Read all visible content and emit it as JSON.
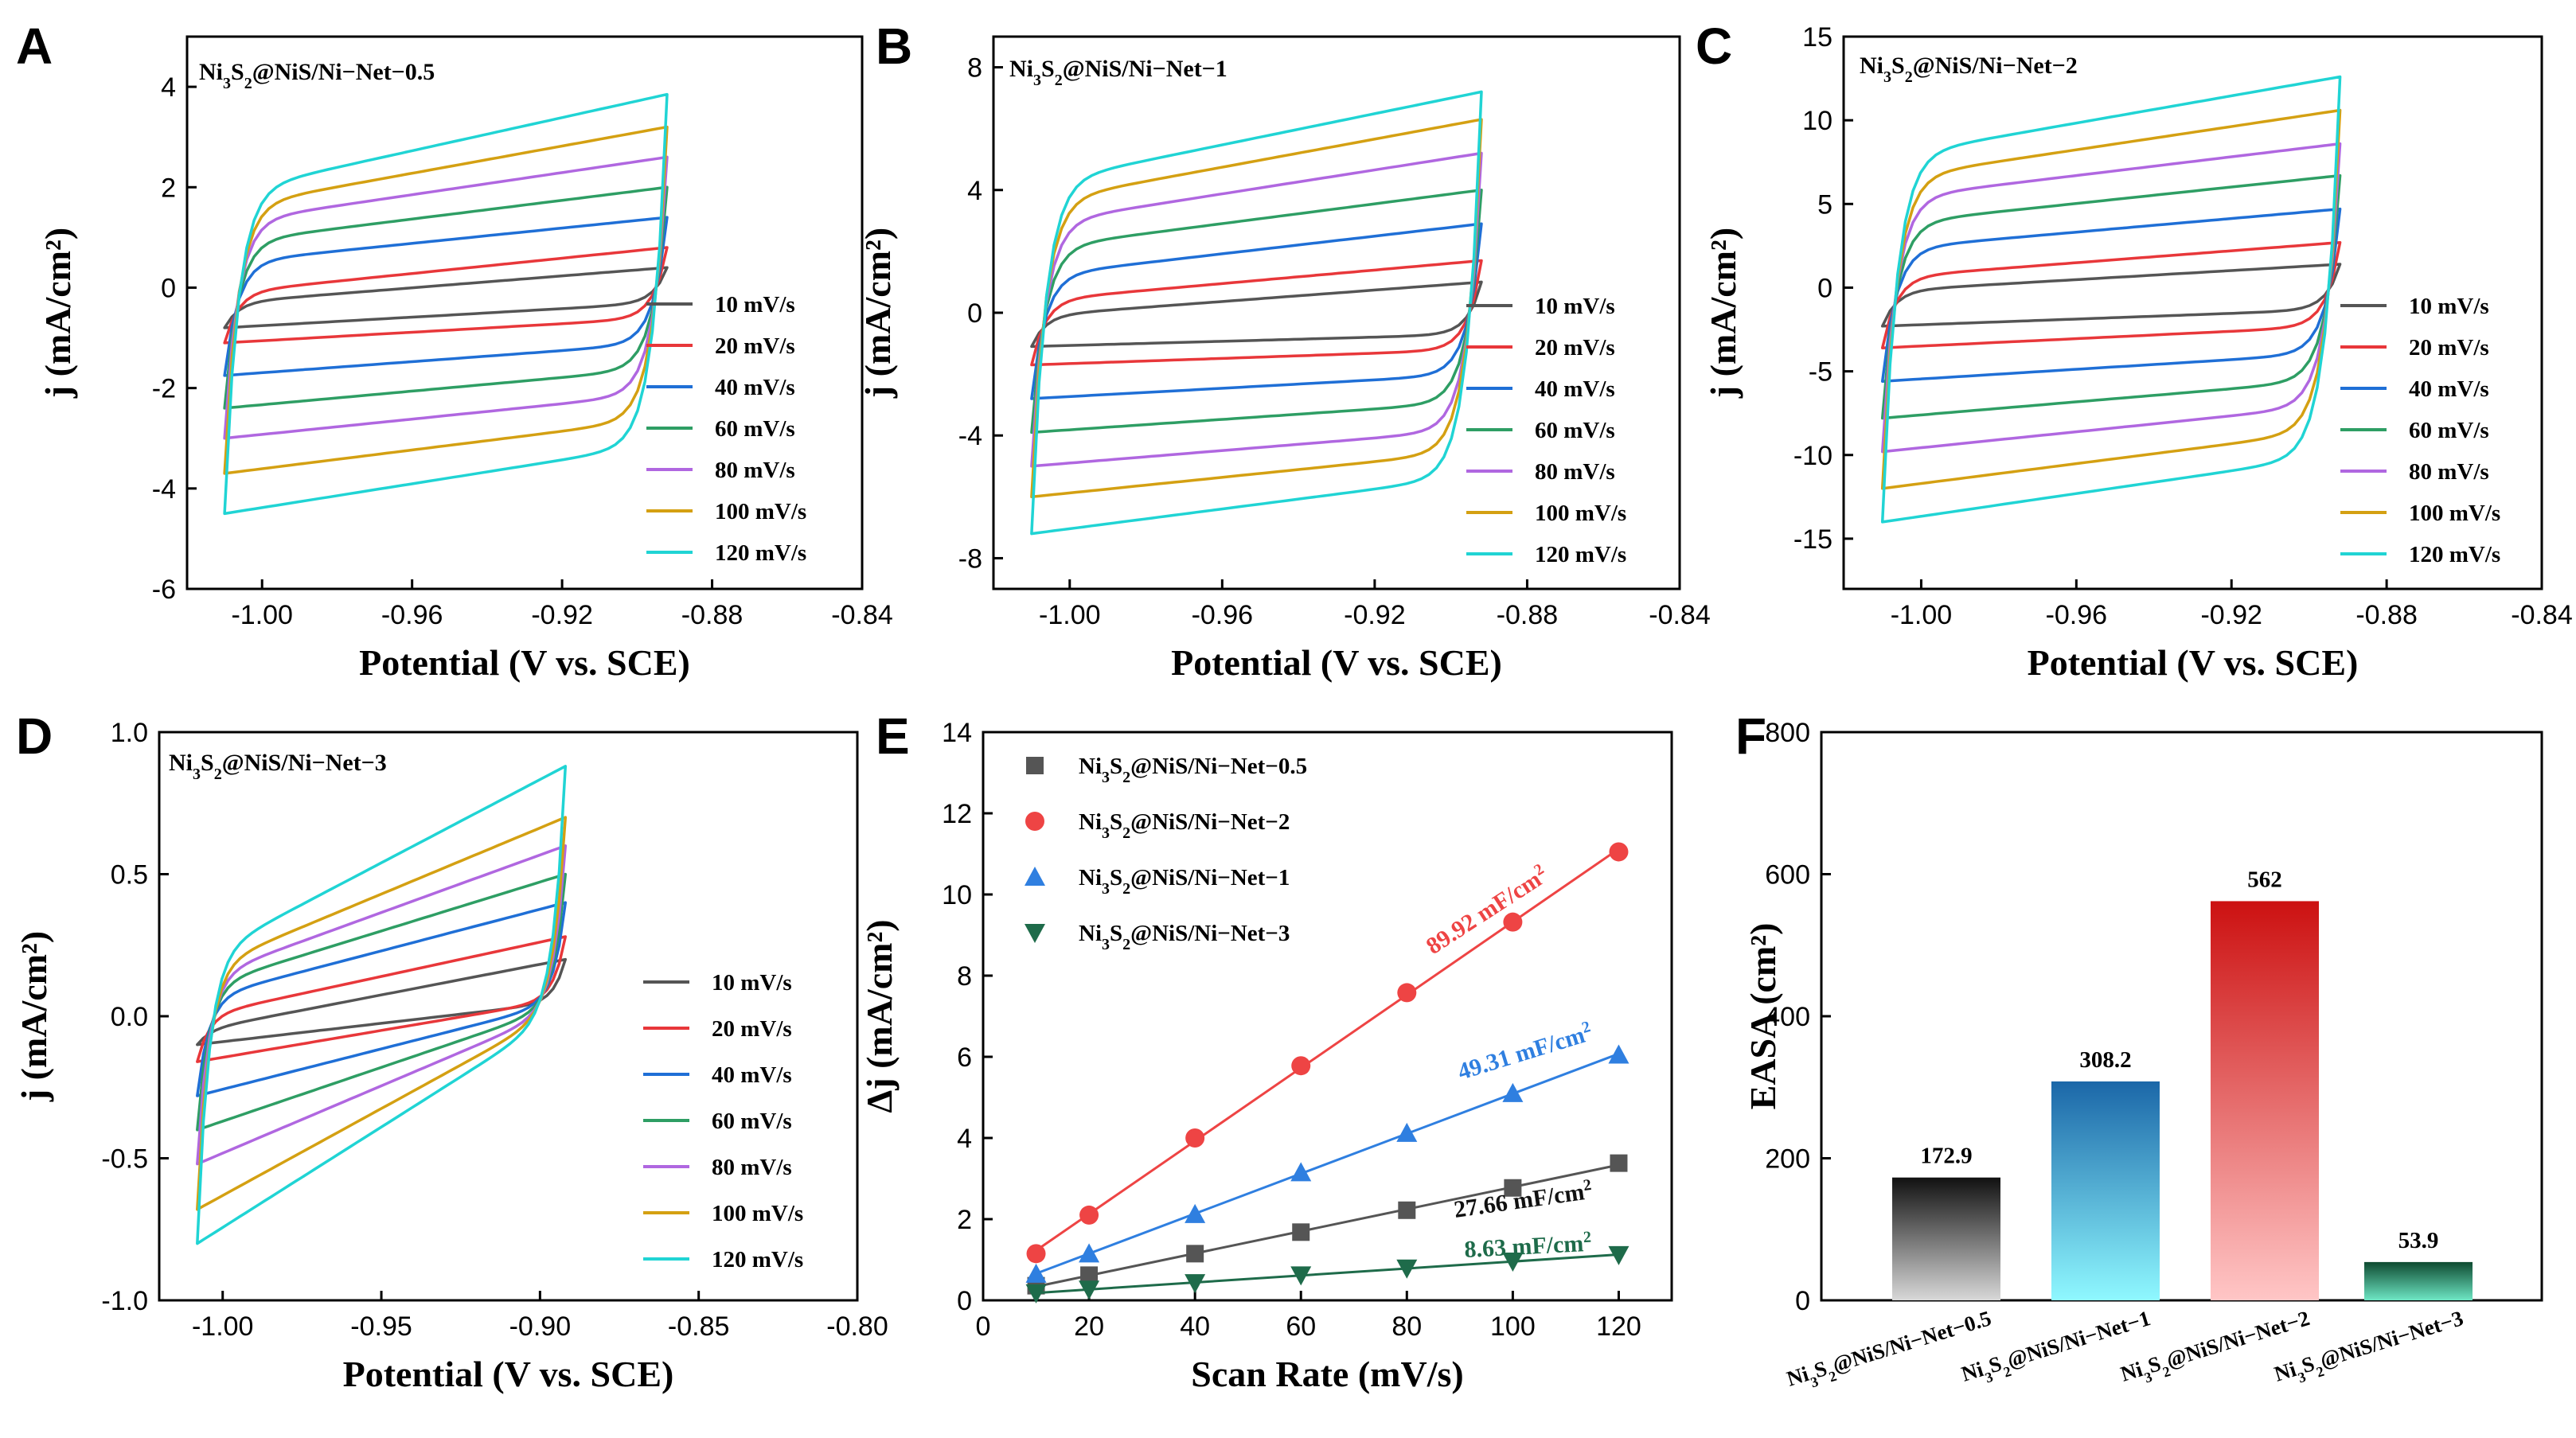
{
  "scan_legend": [
    "10 mV/s",
    "20 mV/s",
    "40 mV/s",
    "60 mV/s",
    "80 mV/s",
    "100 mV/s",
    "120 mV/s"
  ],
  "scan_colors": [
    "#555555",
    "#e8373a",
    "#1f6fd6",
    "#2e9e64",
    "#b067e0",
    "#d4a012",
    "#20d4d4"
  ],
  "chart_data": [
    {
      "panel": "A",
      "type": "line",
      "subtype": "cyclic-voltammetry",
      "label": {
        "base": "Ni",
        "s1": "3",
        "mid": "S",
        "s2": "2",
        "rest": "@NiS/Ni−Net−0.5"
      },
      "xlabel": "Potential (V vs. SCE)",
      "ylabel": "j (mA/cm²)",
      "xlim": [
        -1.02,
        -0.84
      ],
      "ylim": [
        -6,
        5
      ],
      "xticks": [
        -1.0,
        -0.96,
        -0.92,
        -0.88,
        -0.84
      ],
      "xtick_labels": [
        "-1.00",
        "-0.96",
        "-0.92",
        "-0.88",
        "-0.84"
      ],
      "yticks": [
        -6,
        -4,
        -2,
        0,
        2,
        4
      ],
      "ytick_labels": [
        "-6",
        "-4",
        "-2",
        "0",
        "2",
        "4"
      ],
      "v_start": -1.01,
      "v_end": -0.892,
      "series": [
        {
          "name": "10 mV/s",
          "anodic": [
            -0.3,
            0.4
          ],
          "cathodic": [
            -0.8,
            -0.3
          ]
        },
        {
          "name": "20 mV/s",
          "anodic": [
            -0.1,
            0.8
          ],
          "cathodic": [
            -1.1,
            -0.6
          ]
        },
        {
          "name": "40 mV/s",
          "anodic": [
            0.5,
            1.4
          ],
          "cathodic": [
            -1.75,
            -1.1
          ]
        },
        {
          "name": "60 mV/s",
          "anodic": [
            0.9,
            2.0
          ],
          "cathodic": [
            -2.4,
            -1.6
          ]
        },
        {
          "name": "80 mV/s",
          "anodic": [
            1.3,
            2.6
          ],
          "cathodic": [
            -3.0,
            -2.1
          ]
        },
        {
          "name": "100 mV/s",
          "anodic": [
            1.6,
            3.2
          ],
          "cathodic": [
            -3.7,
            -2.6
          ]
        },
        {
          "name": "120 mV/s",
          "anodic": [
            1.9,
            3.85
          ],
          "cathodic": [
            -4.5,
            -3.1
          ]
        }
      ]
    },
    {
      "panel": "B",
      "type": "line",
      "subtype": "cyclic-voltammetry",
      "label": {
        "base": "Ni",
        "s1": "3",
        "mid": "S",
        "s2": "2",
        "rest": "@NiS/Ni−Net−1"
      },
      "xlabel": "Potential (V vs. SCE)",
      "ylabel": "j (mA/cm²)",
      "xlim": [
        -1.02,
        -0.84
      ],
      "ylim": [
        -9,
        9
      ],
      "xticks": [
        -1.0,
        -0.96,
        -0.92,
        -0.88,
        -0.84
      ],
      "xtick_labels": [
        "-1.00",
        "-0.96",
        "-0.92",
        "-0.88",
        "-0.84"
      ],
      "yticks": [
        -8,
        -4,
        0,
        4,
        8
      ],
      "ytick_labels": [
        "-8",
        "-4",
        "0",
        "4",
        "8"
      ],
      "v_start": -1.01,
      "v_end": -0.892,
      "series": [
        {
          "name": "10 mV/s",
          "anodic": [
            -0.1,
            1.0
          ],
          "cathodic": [
            -1.1,
            -0.7
          ]
        },
        {
          "name": "20 mV/s",
          "anodic": [
            0.4,
            1.7
          ],
          "cathodic": [
            -1.7,
            -1.2
          ]
        },
        {
          "name": "40 mV/s",
          "anodic": [
            1.2,
            2.9
          ],
          "cathodic": [
            -2.8,
            -2.0
          ]
        },
        {
          "name": "60 mV/s",
          "anodic": [
            2.1,
            4.0
          ],
          "cathodic": [
            -3.9,
            -2.9
          ]
        },
        {
          "name": "80 mV/s",
          "anodic": [
            2.9,
            5.2
          ],
          "cathodic": [
            -5.0,
            -3.8
          ]
        },
        {
          "name": "100 mV/s",
          "anodic": [
            3.6,
            6.3
          ],
          "cathodic": [
            -6.0,
            -4.5
          ]
        },
        {
          "name": "120 mV/s",
          "anodic": [
            4.2,
            7.2
          ],
          "cathodic": [
            -7.2,
            -5.3
          ]
        }
      ]
    },
    {
      "panel": "C",
      "type": "line",
      "subtype": "cyclic-voltammetry",
      "label": {
        "base": "Ni",
        "s1": "3",
        "mid": "S",
        "s2": "2",
        "rest": "@NiS/Ni−Net−2"
      },
      "xlabel": "Potential (V vs. SCE)",
      "ylabel": "j (mA/cm²)",
      "xlim": [
        -1.02,
        -0.84
      ],
      "ylim": [
        -18,
        15
      ],
      "xticks": [
        -1.0,
        -0.96,
        -0.92,
        -0.88,
        -0.84
      ],
      "xtick_labels": [
        "-1.00",
        "-0.96",
        "-0.92",
        "-0.88",
        "-0.84"
      ],
      "yticks": [
        -15,
        -10,
        -5,
        0,
        5,
        10,
        15
      ],
      "ytick_labels": [
        "-15",
        "-10",
        "-5",
        "0",
        "5",
        "10",
        "15"
      ],
      "v_start": -1.01,
      "v_end": -0.892,
      "series": [
        {
          "name": "10 mV/s",
          "anodic": [
            -0.2,
            1.4
          ],
          "cathodic": [
            -2.3,
            -1.3
          ]
        },
        {
          "name": "20 mV/s",
          "anodic": [
            0.6,
            2.7
          ],
          "cathodic": [
            -3.6,
            -2.3
          ]
        },
        {
          "name": "40 mV/s",
          "anodic": [
            2.3,
            4.7
          ],
          "cathodic": [
            -5.6,
            -3.9
          ]
        },
        {
          "name": "60 mV/s",
          "anodic": [
            3.8,
            6.7
          ],
          "cathodic": [
            -7.8,
            -5.5
          ]
        },
        {
          "name": "80 mV/s",
          "anodic": [
            5.3,
            8.6
          ],
          "cathodic": [
            -9.8,
            -7.0
          ]
        },
        {
          "name": "100 mV/s",
          "anodic": [
            6.5,
            10.6
          ],
          "cathodic": [
            -12.0,
            -8.5
          ]
        },
        {
          "name": "120 mV/s",
          "anodic": [
            7.8,
            12.6
          ],
          "cathodic": [
            -14.0,
            -10.0
          ]
        }
      ]
    },
    {
      "panel": "D",
      "type": "line",
      "subtype": "cyclic-voltammetry",
      "label": {
        "base": "Ni",
        "s1": "3",
        "mid": "S",
        "s2": "2",
        "rest": "@NiS/Ni−Net−3"
      },
      "xlabel": "Potential (V vs. SCE)",
      "ylabel": "j (mA/cm²)",
      "xlim": [
        -1.02,
        -0.8
      ],
      "ylim": [
        -1.0,
        1.0
      ],
      "xticks": [
        -1.0,
        -0.95,
        -0.9,
        -0.85,
        -0.8
      ],
      "xtick_labels": [
        "-1.00",
        "-0.95",
        "-0.90",
        "-0.85",
        "-0.80"
      ],
      "yticks": [
        -1.0,
        -0.5,
        0.0,
        0.5,
        1.0
      ],
      "ytick_labels": [
        "-1.0",
        "-0.5",
        "0.0",
        "0.5",
        "1.0"
      ],
      "v_start": -1.008,
      "v_end": -0.892,
      "series": [
        {
          "name": "10 mV/s",
          "anodic": [
            -0.05,
            0.2
          ],
          "cathodic": [
            -0.1,
            0.05
          ]
        },
        {
          "name": "20 mV/s",
          "anodic": [
            0.0,
            0.28
          ],
          "cathodic": [
            -0.16,
            0.06
          ]
        },
        {
          "name": "40 mV/s",
          "anodic": [
            0.06,
            0.4
          ],
          "cathodic": [
            -0.28,
            0.05
          ]
        },
        {
          "name": "60 mV/s",
          "anodic": [
            0.1,
            0.5
          ],
          "cathodic": [
            -0.4,
            0.04
          ]
        },
        {
          "name": "80 mV/s",
          "anodic": [
            0.13,
            0.6
          ],
          "cathodic": [
            -0.52,
            0.03
          ]
        },
        {
          "name": "100 mV/s",
          "anodic": [
            0.16,
            0.7
          ],
          "cathodic": [
            -0.68,
            0.03
          ]
        },
        {
          "name": "120 mV/s",
          "anodic": [
            0.2,
            0.88
          ],
          "cathodic": [
            -0.8,
            0.02
          ]
        }
      ]
    },
    {
      "panel": "E",
      "type": "scatter",
      "subtype": "linear-fit",
      "xlabel": "Scan Rate (mV/s)",
      "ylabel": "Δj (mA/cm²)",
      "xlim": [
        0,
        130
      ],
      "ylim": [
        0,
        14
      ],
      "xticks": [
        0,
        20,
        40,
        60,
        80,
        100,
        120
      ],
      "xtick_labels": [
        "0",
        "20",
        "40",
        "60",
        "80",
        "100",
        "120"
      ],
      "yticks": [
        0,
        2,
        4,
        6,
        8,
        10,
        12,
        14
      ],
      "ytick_labels": [
        "0",
        "2",
        "4",
        "6",
        "8",
        "10",
        "12",
        "14"
      ],
      "x": [
        10,
        20,
        40,
        60,
        80,
        100,
        120
      ],
      "series": [
        {
          "name": {
            "base": "Ni",
            "s1": "3",
            "mid": "S",
            "s2": "2",
            "rest": "@NiS/Ni−Net−0.5"
          },
          "marker": "square",
          "color": "#555555",
          "values": [
            0.36,
            0.62,
            1.15,
            1.68,
            2.22,
            2.77,
            3.38
          ],
          "annotation": {
            "value": "27.66 mF/cm",
            "sup": "2",
            "color": "#111111"
          }
        },
        {
          "name": {
            "base": "Ni",
            "s1": "3",
            "mid": "S",
            "s2": "2",
            "rest": "@NiS/Ni−Net−2"
          },
          "marker": "circle",
          "color": "#ee4444",
          "values": [
            1.15,
            2.1,
            4.0,
            5.78,
            7.58,
            9.32,
            11.05
          ],
          "annotation": {
            "value": "89.92 mF/cm",
            "sup": "2",
            "color": "#ee4444"
          }
        },
        {
          "name": {
            "base": "Ni",
            "s1": "3",
            "mid": "S",
            "s2": "2",
            "rest": "@NiS/Ni−Net−1"
          },
          "marker": "triangle-up",
          "color": "#2f7fe0",
          "values": [
            0.65,
            1.15,
            2.12,
            3.15,
            4.12,
            5.1,
            6.05
          ],
          "annotation": {
            "value": "49.31 mF/cm",
            "sup": "2",
            "color": "#2f7fe0"
          }
        },
        {
          "name": {
            "base": "Ni",
            "s1": "3",
            "mid": "S",
            "s2": "2",
            "rest": "@NiS/Ni−Net−3"
          },
          "marker": "triangle-down",
          "color": "#1e6b4a",
          "values": [
            0.18,
            0.27,
            0.43,
            0.62,
            0.79,
            0.96,
            1.12
          ],
          "annotation": {
            "value": "8.63 mF/cm",
            "sup": "2",
            "color": "#1e6b4a"
          }
        }
      ]
    },
    {
      "panel": "F",
      "type": "bar",
      "ylabel": "EASA (cm²)",
      "ylim": [
        0,
        800
      ],
      "yticks": [
        0,
        200,
        400,
        600,
        800
      ],
      "ytick_labels": [
        "0",
        "200",
        "400",
        "600",
        "800"
      ],
      "categories": [
        {
          "base": "Ni",
          "s1": "3",
          "mid": "S",
          "s2": "2",
          "rest": "@NiS/Ni−Net−0.5"
        },
        {
          "base": "Ni",
          "s1": "3",
          "mid": "S",
          "s2": "2",
          "rest": "@NiS/Ni−Net−1"
        },
        {
          "base": "Ni",
          "s1": "3",
          "mid": "S",
          "s2": "2",
          "rest": "@NiS/Ni−Net−2"
        },
        {
          "base": "Ni",
          "s1": "3",
          "mid": "S",
          "s2": "2",
          "rest": "@NiS/Ni−Net−3"
        }
      ],
      "values": [
        172.9,
        308.2,
        562,
        53.9
      ],
      "value_labels": [
        "172.9",
        "308.2",
        "562",
        "53.9"
      ],
      "bar_gradients": [
        [
          "#111111",
          "#d8d8d8"
        ],
        [
          "#1b67a8",
          "#8ff8ff"
        ],
        [
          "#cc1111",
          "#ffc6c6"
        ],
        [
          "#0e4a30",
          "#6ee6c4"
        ]
      ]
    }
  ]
}
